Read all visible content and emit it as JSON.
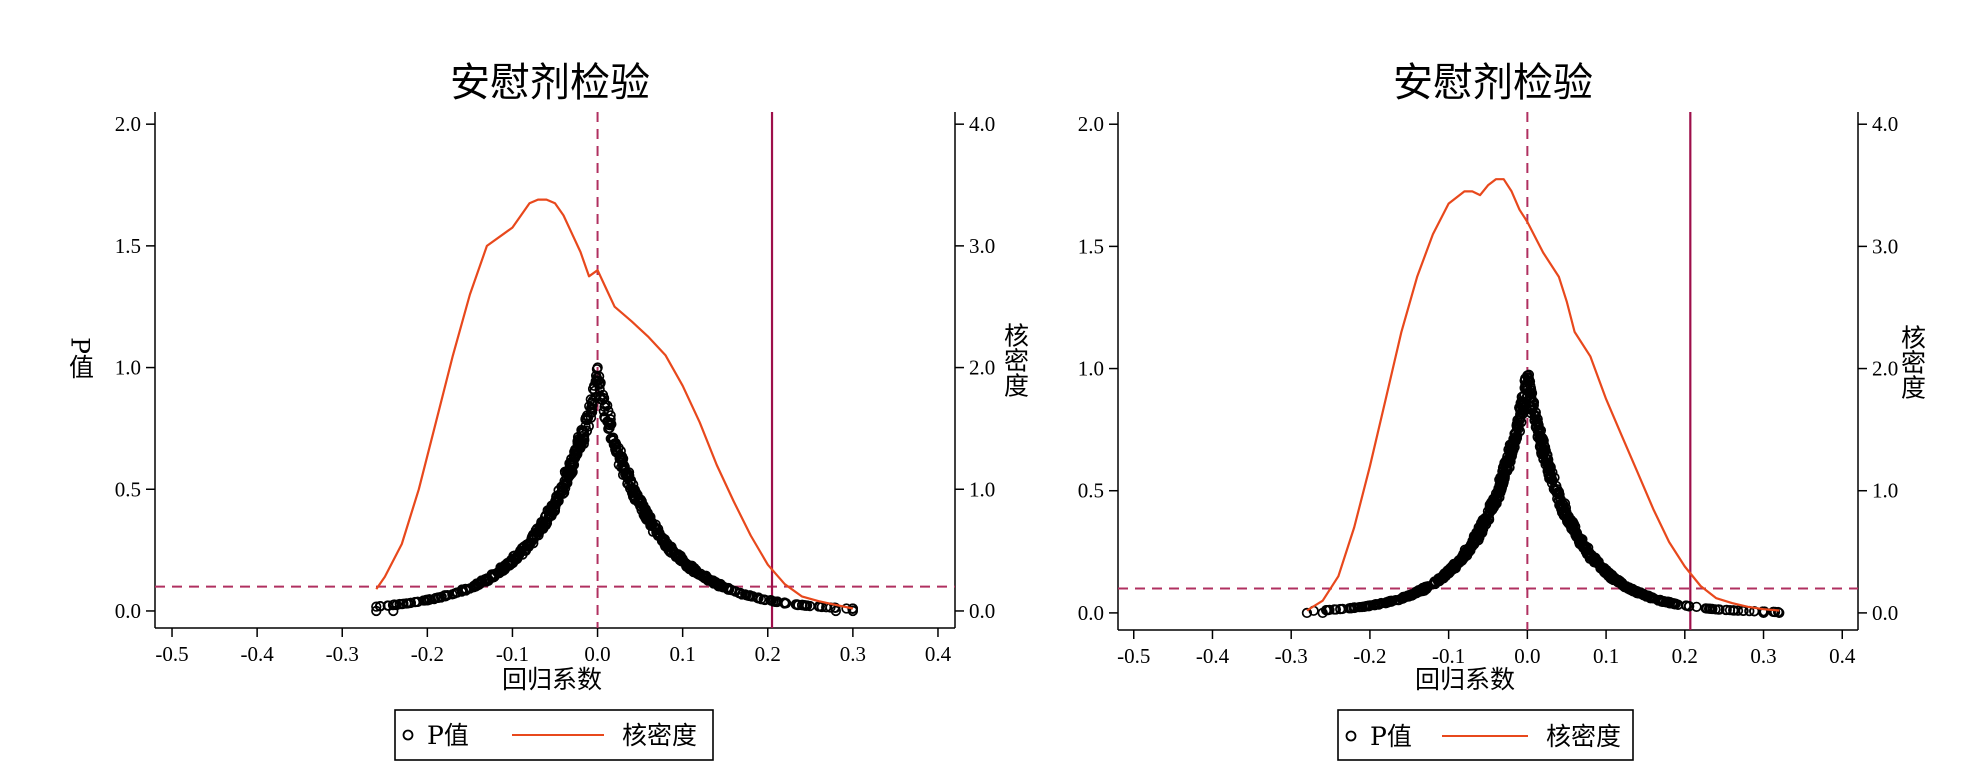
{
  "colors": {
    "kde_line": "#e8481c",
    "reference_line": "#b03060",
    "true_coef_line": "#9e0f4a",
    "points": "#000000",
    "background": "#ffffff"
  },
  "legend": {
    "p_label": "P值",
    "kde_label": "核密度"
  },
  "chart_data": [
    {
      "type": "scatter",
      "title": "安慰剂检验",
      "xlabel": "回归系数",
      "ylabel": "P值",
      "y2label": "核密度",
      "xlim": [
        -0.52,
        0.42
      ],
      "ylim": [
        -0.07,
        2.05
      ],
      "y2lim": [
        -0.14,
        4.1
      ],
      "xticks": [
        "-0.5",
        "-0.4",
        "-0.3",
        "-0.2",
        "-0.1",
        "0.0",
        "0.1",
        "0.2",
        "0.3",
        "0.4"
      ],
      "xtick_values": [
        -0.5,
        -0.4,
        -0.3,
        -0.2,
        -0.1,
        0.0,
        0.1,
        0.2,
        0.3,
        0.4
      ],
      "yticks": [
        "0.0",
        "0.5",
        "1.0",
        "1.5",
        "2.0"
      ],
      "ytick_values": [
        0,
        0.5,
        1.0,
        1.5,
        2.0
      ],
      "y2ticks": [
        "0.0",
        "1.0",
        "2.0",
        "3.0",
        "4.0"
      ],
      "y2tick_values": [
        0,
        1,
        2,
        3,
        4
      ],
      "reference_lines": {
        "x_zero": 0.0,
        "p_threshold": 0.1,
        "true_coefficient": 0.205
      },
      "scatter_params": {
        "x_min": -0.26,
        "x_max": 0.3,
        "core_width": 0.2,
        "bandwidth": 0.085,
        "n": 700
      },
      "kde_series": {
        "name": "核密度",
        "x": [
          -0.26,
          -0.25,
          -0.23,
          -0.21,
          -0.19,
          -0.17,
          -0.15,
          -0.13,
          -0.11,
          -0.1,
          -0.09,
          -0.08,
          -0.07,
          -0.06,
          -0.05,
          -0.04,
          -0.03,
          -0.02,
          -0.01,
          0.0,
          0.01,
          0.02,
          0.04,
          0.06,
          0.08,
          0.1,
          0.12,
          0.14,
          0.16,
          0.18,
          0.2,
          0.22,
          0.24,
          0.26,
          0.28,
          0.3
        ],
        "y": [
          0.18,
          0.28,
          0.55,
          1.0,
          1.55,
          2.1,
          2.6,
          3.0,
          3.1,
          3.15,
          3.25,
          3.35,
          3.38,
          3.38,
          3.35,
          3.25,
          3.1,
          2.95,
          2.75,
          2.8,
          2.65,
          2.5,
          2.38,
          2.25,
          2.1,
          1.85,
          1.55,
          1.2,
          0.9,
          0.62,
          0.38,
          0.22,
          0.12,
          0.08,
          0.05,
          0.02
        ]
      }
    },
    {
      "type": "scatter",
      "title": "安慰剂检验",
      "xlabel": "回归系数",
      "ylabel": "",
      "y2label": "核密度",
      "xlim": [
        -0.52,
        0.42
      ],
      "ylim": [
        -0.07,
        2.05
      ],
      "y2lim": [
        -0.14,
        4.1
      ],
      "xticks": [
        "-0.5",
        "-0.4",
        "-0.3",
        "-0.2",
        "-0.1",
        "0.0",
        "0.1",
        "0.2",
        "0.3",
        "0.4"
      ],
      "xtick_values": [
        -0.5,
        -0.4,
        -0.3,
        -0.2,
        -0.1,
        0.0,
        0.1,
        0.2,
        0.3,
        0.4
      ],
      "yticks": [
        "0.0",
        "0.5",
        "1.0",
        "1.5",
        "2.0"
      ],
      "ytick_values": [
        0,
        0.5,
        1.0,
        1.5,
        2.0
      ],
      "y2ticks": [
        "0.0",
        "1.0",
        "2.0",
        "3.0",
        "4.0"
      ],
      "y2tick_values": [
        0,
        1,
        2,
        3,
        4
      ],
      "reference_lines": {
        "x_zero": 0.0,
        "p_threshold": 0.1,
        "true_coefficient": 0.207
      },
      "scatter_params": {
        "x_min": -0.28,
        "x_max": 0.32,
        "core_width": 0.18,
        "bandwidth": 0.075,
        "n": 900
      },
      "kde_series": {
        "name": "核密度",
        "x": [
          -0.28,
          -0.26,
          -0.24,
          -0.22,
          -0.2,
          -0.18,
          -0.16,
          -0.14,
          -0.12,
          -0.1,
          -0.08,
          -0.07,
          -0.06,
          -0.05,
          -0.04,
          -0.03,
          -0.02,
          -0.01,
          0.0,
          0.02,
          0.04,
          0.05,
          0.06,
          0.08,
          0.1,
          0.12,
          0.14,
          0.16,
          0.18,
          0.2,
          0.22,
          0.24,
          0.26,
          0.28,
          0.3,
          0.32
        ],
        "y": [
          0.02,
          0.1,
          0.3,
          0.7,
          1.2,
          1.75,
          2.3,
          2.75,
          3.1,
          3.35,
          3.45,
          3.45,
          3.42,
          3.5,
          3.55,
          3.55,
          3.45,
          3.3,
          3.2,
          2.95,
          2.75,
          2.55,
          2.3,
          2.1,
          1.75,
          1.45,
          1.15,
          0.85,
          0.58,
          0.38,
          0.22,
          0.12,
          0.08,
          0.05,
          0.03,
          0.02
        ]
      }
    }
  ]
}
